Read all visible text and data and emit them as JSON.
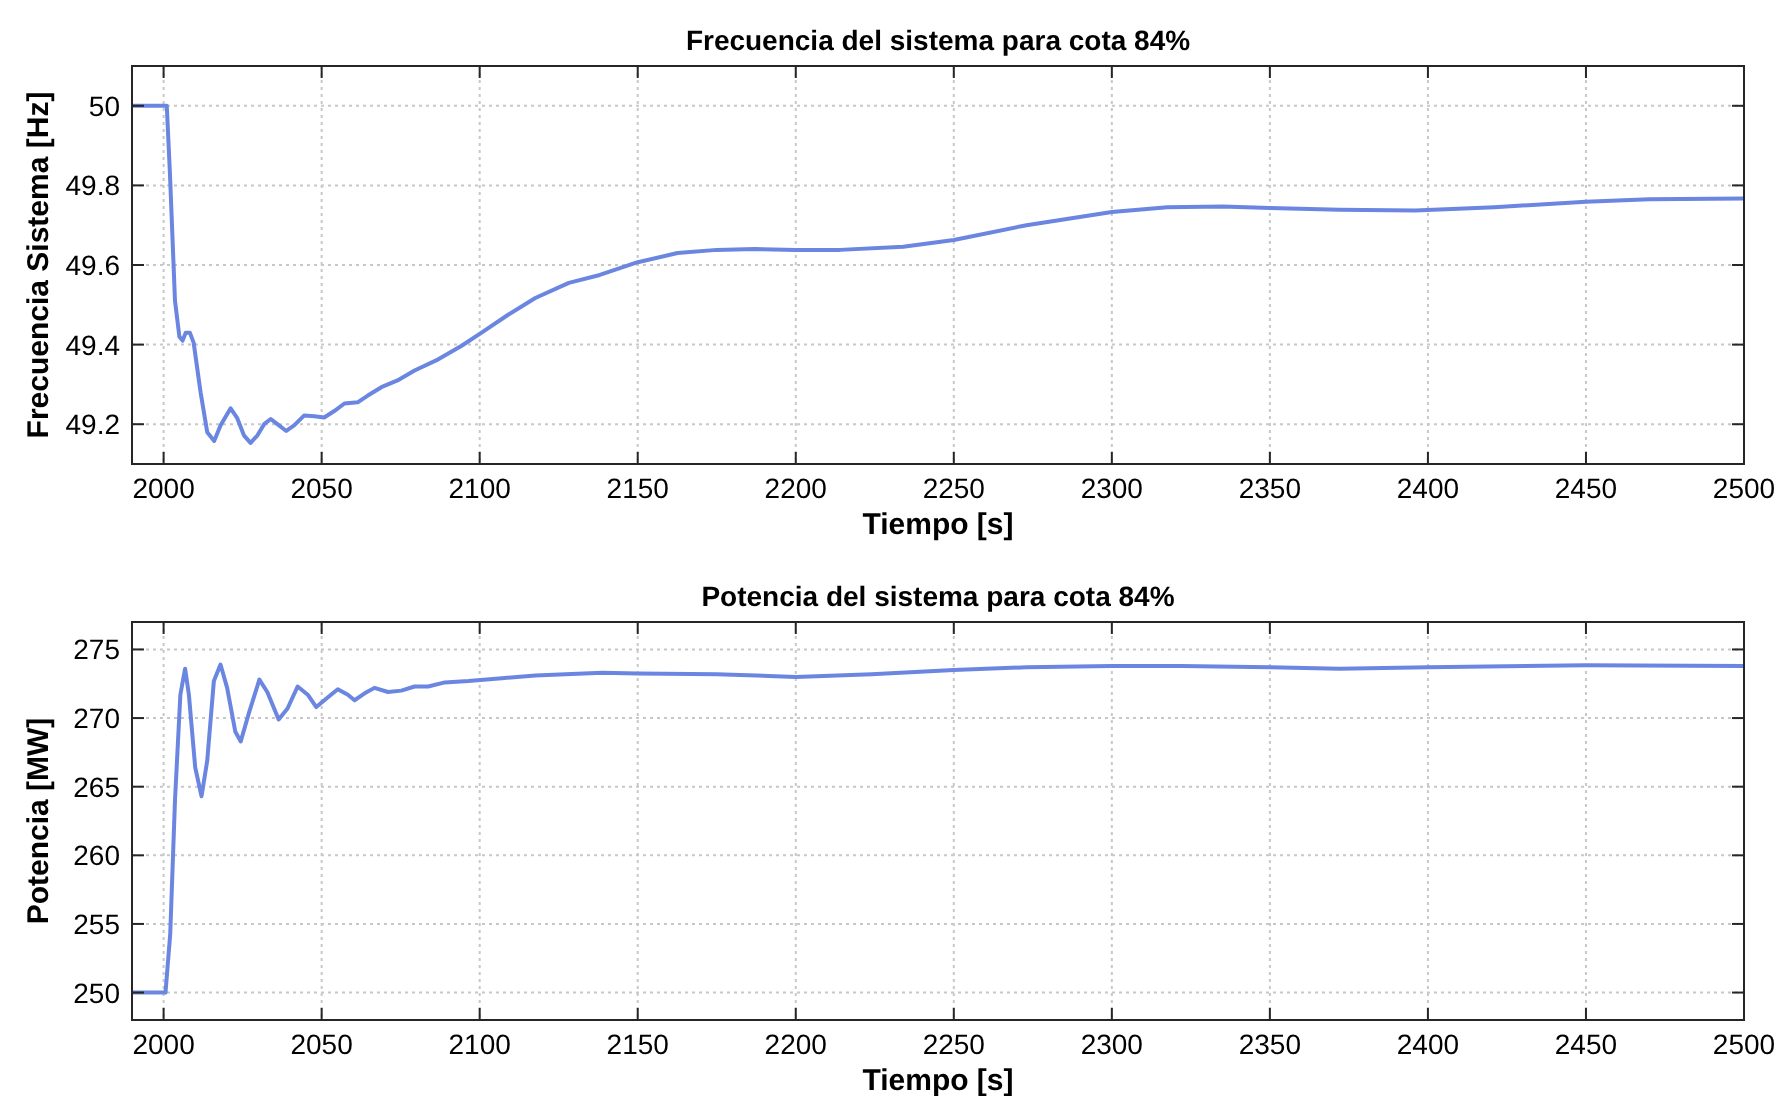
{
  "chart_data": [
    {
      "type": "line",
      "title": "Frecuencia del sistema para cota 84%",
      "xlabel": "Tiempo [s]",
      "ylabel": "Frecuencia Sistema [Hz]",
      "xlim": [
        1990,
        2500
      ],
      "xticks": [
        2000,
        2050,
        2100,
        2150,
        2200,
        2250,
        2300,
        2350,
        2400,
        2450,
        2500
      ],
      "ylim": [
        49.1,
        50.1
      ],
      "yticks": [
        49.2,
        49.4,
        49.6,
        49.8,
        50
      ],
      "grid": true,
      "line_style": "solid",
      "series": [
        {
          "color": "#6a86e0",
          "x": [
            1990,
            2000,
            2001,
            2002,
            2003.6,
            2005,
            2006,
            2007,
            2008.3,
            2009.5,
            2011.7,
            2013.8,
            2016,
            2018,
            2021.2,
            2023.3,
            2025.4,
            2027.5,
            2029.7,
            2031.8,
            2033.9,
            2036,
            2038.8,
            2041.3,
            2044.5,
            2047.7,
            2050.8,
            2054,
            2057.2,
            2061.4,
            2064.6,
            2068.9,
            2074,
            2079.4,
            2086.9,
            2094.3,
            2100.6,
            2109,
            2117.6,
            2128.2,
            2138,
            2150,
            2162.6,
            2175,
            2187,
            2200,
            2214,
            2234,
            2250,
            2273,
            2300,
            2317.5,
            2335,
            2350,
            2372,
            2396,
            2421,
            2450,
            2470,
            2500
          ],
          "values": [
            50,
            50,
            50,
            49.83,
            49.51,
            49.42,
            49.41,
            49.43,
            49.43,
            49.405,
            49.28,
            49.18,
            49.158,
            49.197,
            49.24,
            49.215,
            49.172,
            49.153,
            49.172,
            49.2,
            49.213,
            49.2,
            49.183,
            49.197,
            49.222,
            49.22,
            49.217,
            49.233,
            49.252,
            49.255,
            49.272,
            49.293,
            49.31,
            49.335,
            49.363,
            49.397,
            49.43,
            49.475,
            49.517,
            49.555,
            49.575,
            49.607,
            49.63,
            49.638,
            49.64,
            49.638,
            49.638,
            49.646,
            49.663,
            49.7,
            49.733,
            49.745,
            49.747,
            49.743,
            49.739,
            49.737,
            49.745,
            49.759,
            49.765,
            49.767
          ]
        }
      ]
    },
    {
      "type": "line",
      "title": "Potencia del sistema para cota 84%",
      "xlabel": "Tiempo [s]",
      "ylabel": "Potencia [MW]",
      "xlim": [
        1990,
        2500
      ],
      "xticks": [
        2000,
        2050,
        2100,
        2150,
        2200,
        2250,
        2300,
        2350,
        2400,
        2450,
        2500
      ],
      "ylim": [
        248,
        277
      ],
      "yticks": [
        250,
        255,
        260,
        265,
        270,
        275
      ],
      "grid": true,
      "line_style": "solid",
      "series": [
        {
          "color": "#6a86e0",
          "x": [
            1990,
            2000,
            2000.6,
            2002.1,
            2003.6,
            2005.3,
            2006.8,
            2008,
            2010,
            2012,
            2013.8,
            2015.9,
            2018,
            2020.1,
            2022.7,
            2024.4,
            2026.9,
            2030.3,
            2032.8,
            2036.4,
            2039.2,
            2042.4,
            2045.6,
            2048.3,
            2051.9,
            2055.1,
            2058.3,
            2060.4,
            2063.6,
            2066.7,
            2071,
            2075.2,
            2079.4,
            2083.7,
            2089,
            2096.4,
            2107,
            2117.6,
            2138.8,
            2150,
            2175,
            2200,
            2224,
            2250,
            2273,
            2300,
            2322,
            2350,
            2372,
            2400,
            2450,
            2500
          ],
          "values": [
            250,
            250,
            250,
            254.3,
            264,
            271.7,
            273.6,
            271.7,
            266.4,
            264.3,
            266.9,
            272.7,
            273.9,
            272.2,
            269,
            268.3,
            270.3,
            272.8,
            271.9,
            269.9,
            270.7,
            272.3,
            271.7,
            270.8,
            271.5,
            272.1,
            271.7,
            271.3,
            271.8,
            272.2,
            271.9,
            272,
            272.3,
            272.3,
            272.6,
            272.7,
            272.9,
            273.1,
            273.3,
            273.25,
            273.2,
            273,
            273.2,
            273.5,
            273.7,
            273.8,
            273.8,
            273.7,
            273.6,
            273.7,
            273.85,
            273.8
          ]
        }
      ]
    }
  ]
}
